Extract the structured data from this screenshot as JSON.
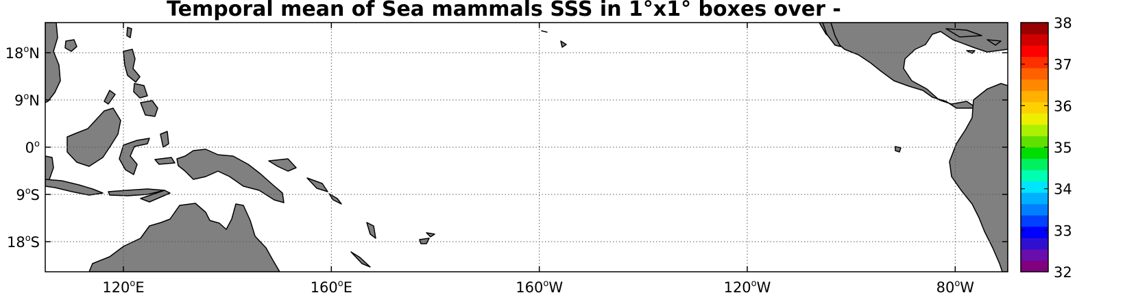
{
  "title": "Temporal mean of Sea mammals  SSS in 1°x1° boxes over -",
  "x_ticks": [
    {
      "lon": 120,
      "main": "120",
      "suffix": "E"
    },
    {
      "lon": 160,
      "main": "160",
      "suffix": "E"
    },
    {
      "lon": 200,
      "main": "160",
      "suffix": "W"
    },
    {
      "lon": 240,
      "main": "120",
      "suffix": "W"
    },
    {
      "lon": 280,
      "main": "80",
      "suffix": "W"
    }
  ],
  "y_ticks": [
    {
      "lat": 18,
      "main": "18",
      "suffix": "N"
    },
    {
      "lat": 9,
      "main": "9",
      "suffix": "N"
    },
    {
      "lat": 0,
      "main": "0",
      "suffix": ""
    },
    {
      "lat": -9,
      "main": "9",
      "suffix": "S"
    },
    {
      "lat": -18,
      "main": "18",
      "suffix": "S"
    }
  ],
  "colorbar": {
    "min": 32,
    "max": 38,
    "labels": [
      "38",
      "37",
      "36",
      "35",
      "34",
      "33",
      "32"
    ],
    "colors": [
      "#800080",
      "#6a0dad",
      "#3010d0",
      "#0000ff",
      "#0040ff",
      "#0080ff",
      "#00b0ff",
      "#00e5ff",
      "#00ffb0",
      "#00f060",
      "#00dd00",
      "#60e000",
      "#aaf000",
      "#eeee00",
      "#ffd000",
      "#ffb000",
      "#ff8800",
      "#ff6000",
      "#ff3000",
      "#ff0000",
      "#d00000",
      "#990000"
    ]
  },
  "colors": {
    "land": "#808080",
    "ocean": "#ffffff",
    "grid": "#555555"
  }
}
